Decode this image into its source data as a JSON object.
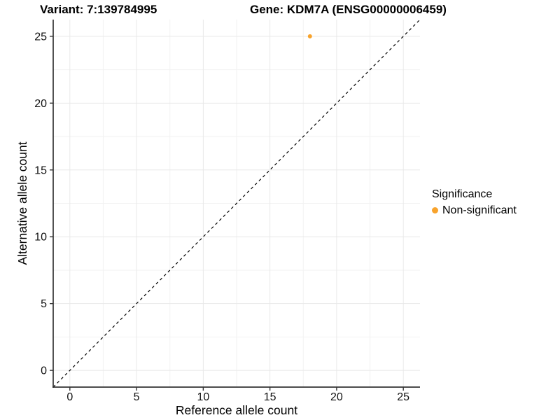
{
  "titles": {
    "variant": "Variant: 7:139784995",
    "gene": "Gene: KDM7A (ENSG00000006459)"
  },
  "chart_data": {
    "type": "scatter",
    "xlabel": "Reference allele count",
    "ylabel": "Alternative allele count",
    "xlim": [
      -1.25,
      26.25
    ],
    "ylim": [
      -1.25,
      26.25
    ],
    "xticks": [
      0,
      5,
      10,
      15,
      20,
      25
    ],
    "yticks": [
      0,
      5,
      10,
      15,
      20,
      25
    ],
    "xminor": [
      2.5,
      7.5,
      12.5,
      17.5,
      22.5
    ],
    "yminor": [
      2.5,
      7.5,
      12.5,
      17.5,
      22.5
    ],
    "grid": true,
    "points": [
      {
        "x": 18,
        "y": 25,
        "series": "Non-significant"
      }
    ],
    "reference_line": {
      "style": "dashed",
      "from": [
        -1.25,
        -1.25
      ],
      "to": [
        26.25,
        26.25
      ]
    },
    "legend": {
      "title": "Significance",
      "position": "right",
      "items": [
        {
          "label": "Non-significant",
          "color": "#F8A32C"
        }
      ]
    }
  },
  "colors": {
    "point": "#F8A32C",
    "grid_major": "#e8e8e8",
    "grid_minor": "#f2f2f2",
    "axis": "#333333",
    "dashed_line": "#000000",
    "tick_text": "#111111"
  }
}
